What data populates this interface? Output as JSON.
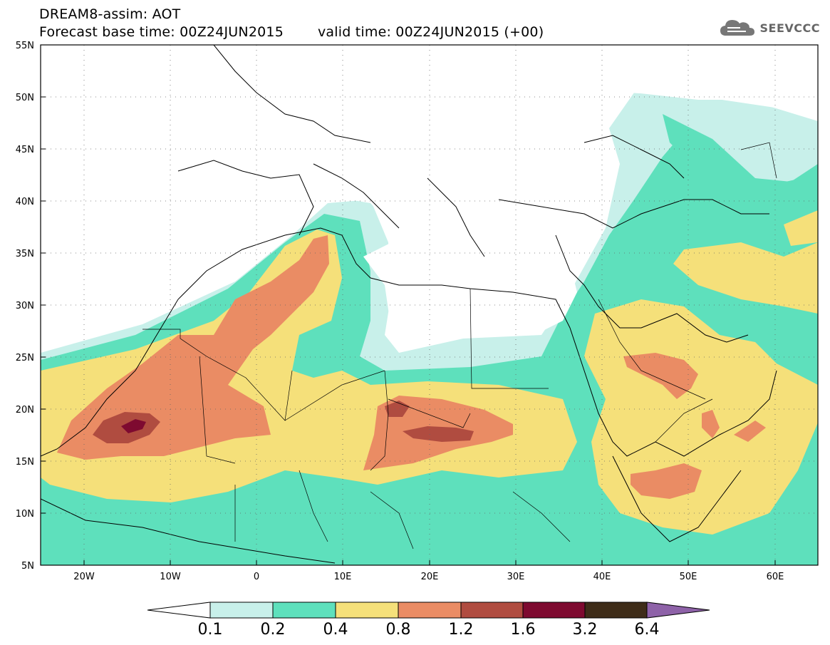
{
  "header": {
    "title": "DREAM8-assim: AOT",
    "base_time": "Forecast base time: 00Z24JUN2015",
    "valid_time": "valid time: 00Z24JUN2015 (+00)",
    "logo_text": "SEEVCCC"
  },
  "map": {
    "lon_range": [
      -25,
      65
    ],
    "lat_range": [
      5,
      55
    ],
    "lat_ticks": [
      "5N",
      "10N",
      "15N",
      "20N",
      "25N",
      "30N",
      "35N",
      "40N",
      "45N",
      "50N",
      "55N"
    ],
    "lon_ticks": [
      "20W",
      "10W",
      "0",
      "10E",
      "20E",
      "30E",
      "40E",
      "50E",
      "60E"
    ]
  },
  "colorbar": {
    "labels": [
      "0.1",
      "0.2",
      "0.4",
      "0.8",
      "1.2",
      "1.6",
      "3.2",
      "6.4"
    ],
    "colors": [
      "#ffffff",
      "#c8f0ea",
      "#5ee0bc",
      "#f5e07a",
      "#ea8c64",
      "#b04c40",
      "#7e0a30",
      "#3e2c18",
      "#8e62a8"
    ]
  }
}
